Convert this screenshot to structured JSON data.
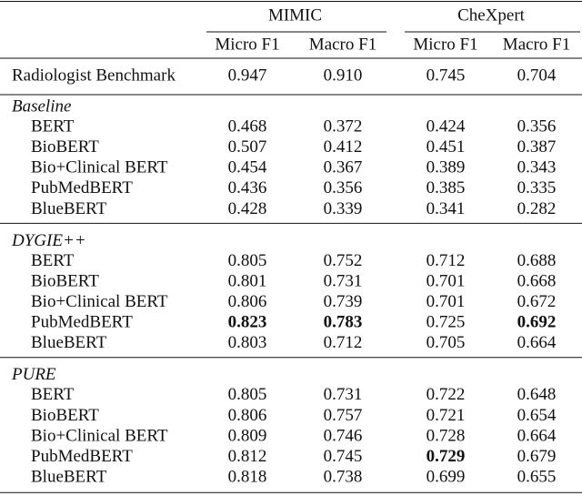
{
  "header": {
    "groups": [
      "MIMIC",
      "CheXpert"
    ],
    "columns": [
      "Micro F1",
      "Macro F1",
      "Micro F1",
      "Macro F1"
    ]
  },
  "benchmark": {
    "label": "Radiologist Benchmark",
    "values": [
      "0.947",
      "0.910",
      "0.745",
      "0.704"
    ]
  },
  "sections": [
    {
      "title": "Baseline",
      "rows": [
        {
          "label": "BERT",
          "values": [
            "0.468",
            "0.372",
            "0.424",
            "0.356"
          ]
        },
        {
          "label": "BioBERT",
          "values": [
            "0.507",
            "0.412",
            "0.451",
            "0.387"
          ]
        },
        {
          "label": "Bio+Clinical BERT",
          "values": [
            "0.454",
            "0.367",
            "0.389",
            "0.343"
          ]
        },
        {
          "label": "PubMedBERT",
          "values": [
            "0.436",
            "0.356",
            "0.385",
            "0.335"
          ]
        },
        {
          "label": "BlueBERT",
          "values": [
            "0.428",
            "0.339",
            "0.341",
            "0.282"
          ]
        }
      ]
    },
    {
      "title": "DYGIE++",
      "rows": [
        {
          "label": "BERT",
          "values": [
            "0.805",
            "0.752",
            "0.712",
            "0.688"
          ]
        },
        {
          "label": "BioBERT",
          "values": [
            "0.801",
            "0.731",
            "0.701",
            "0.668"
          ]
        },
        {
          "label": "Bio+Clinical BERT",
          "values": [
            "0.806",
            "0.739",
            "0.701",
            "0.672"
          ]
        },
        {
          "label": "PubMedBERT",
          "values": [
            "0.823",
            "0.783",
            "0.725",
            "0.692"
          ],
          "bold": [
            0,
            1,
            3
          ]
        },
        {
          "label": "BlueBERT",
          "values": [
            "0.803",
            "0.712",
            "0.705",
            "0.664"
          ]
        }
      ]
    },
    {
      "title": "PURE",
      "rows": [
        {
          "label": "BERT",
          "values": [
            "0.805",
            "0.731",
            "0.722",
            "0.648"
          ]
        },
        {
          "label": "BioBERT",
          "values": [
            "0.806",
            "0.757",
            "0.721",
            "0.654"
          ]
        },
        {
          "label": "Bio+Clinical BERT",
          "values": [
            "0.809",
            "0.746",
            "0.728",
            "0.664"
          ]
        },
        {
          "label": "PubMedBERT",
          "values": [
            "0.812",
            "0.745",
            "0.729",
            "0.679"
          ],
          "bold": [
            2
          ]
        },
        {
          "label": "BlueBERT",
          "values": [
            "0.818",
            "0.738",
            "0.699",
            "0.655"
          ]
        }
      ]
    }
  ]
}
